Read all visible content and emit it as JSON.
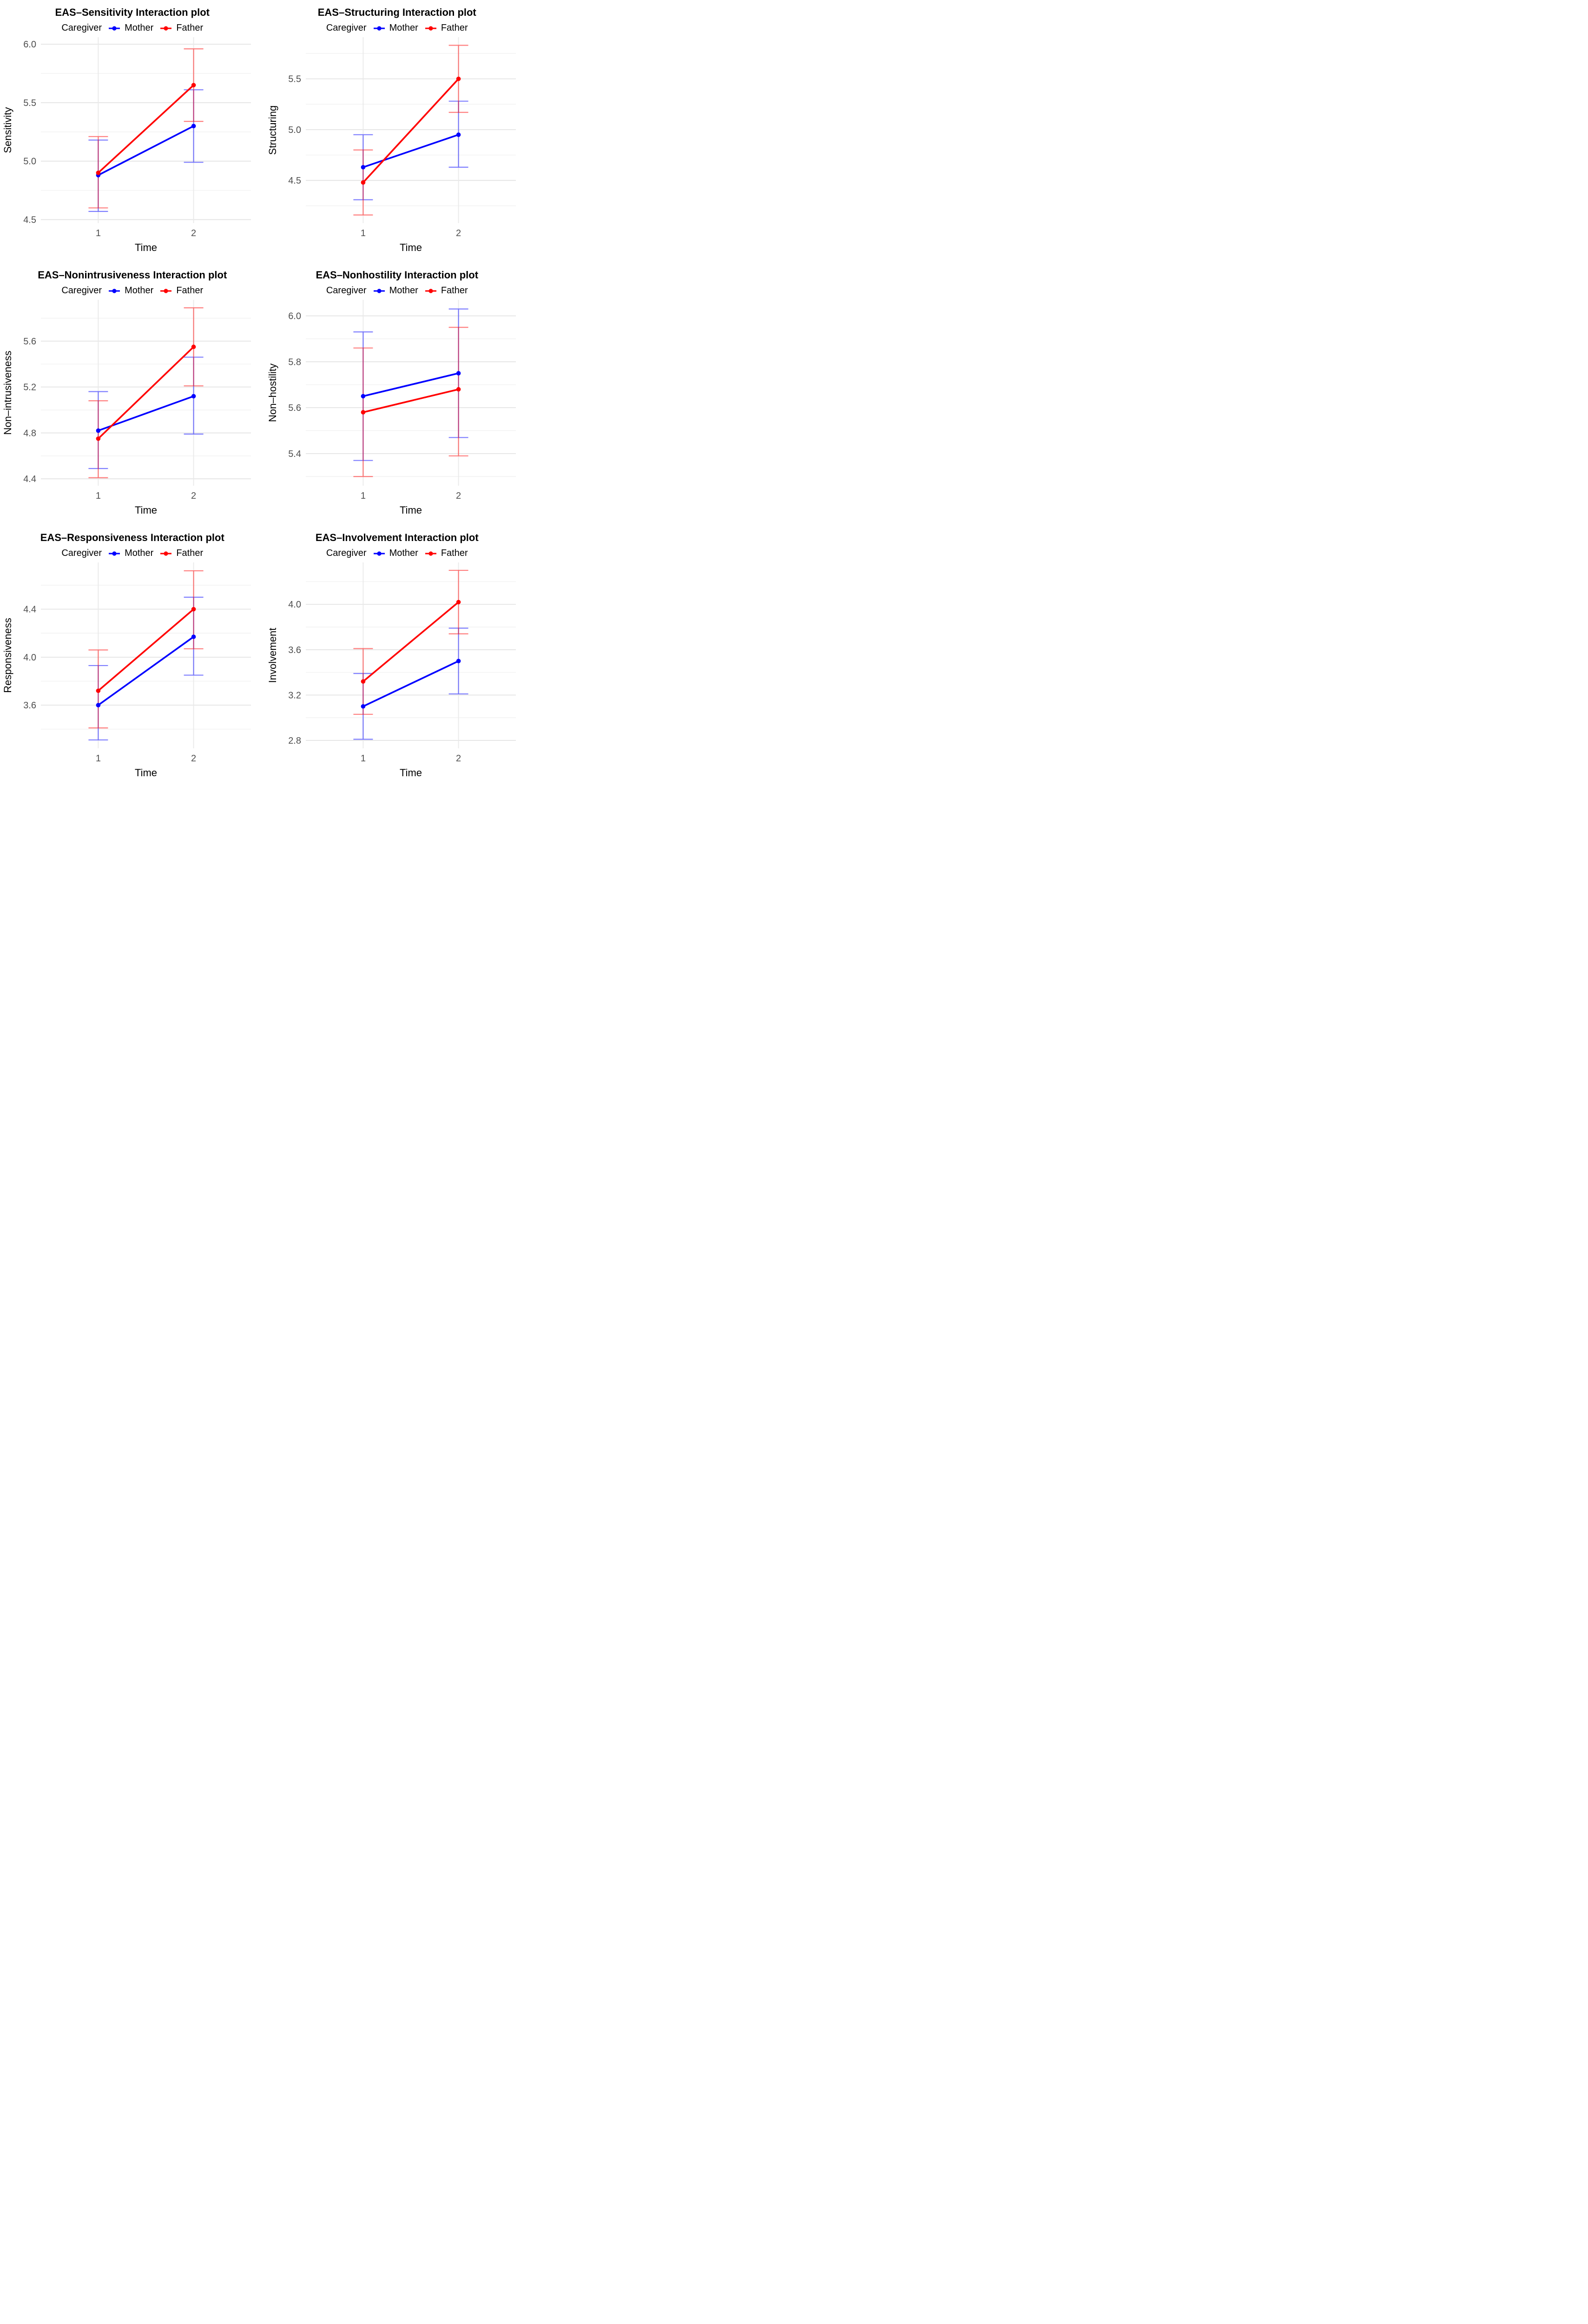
{
  "figure": {
    "background": "#FFFFFF",
    "layout": "2x3 grid of interaction plots",
    "legend_title": "Caregiver",
    "x_axis_label": "Time",
    "colors": {
      "mother": "#0000FF",
      "father": "#FF0000",
      "tick_label": "#4D4D4D",
      "grid_major": "#E4E4E4",
      "grid_minor": "#F1F1F1",
      "grid_vertical": "#E9E9E9"
    }
  },
  "chart_data": [
    {
      "type": "line",
      "title": "EAS–Sensitivity Interaction plot",
      "legend_title": "Caregiver",
      "xlabel": "Time",
      "ylabel": "Sensitivity",
      "x": [
        1,
        2
      ],
      "x_tick_labels": [
        "1",
        "2"
      ],
      "yticks": [
        4.5,
        5.0,
        5.5,
        6.0
      ],
      "ytick_labels": [
        "4.5",
        "5.0",
        "5.5",
        "6.0"
      ],
      "ylim": [
        4.47,
        6.06
      ],
      "grid": true,
      "legend_position": "top",
      "series": [
        {
          "name": "Mother",
          "color": "#0000FF",
          "values": [
            4.88,
            5.3
          ],
          "ci_lower": [
            4.57,
            4.99
          ],
          "ci_upper": [
            5.18,
            5.61
          ]
        },
        {
          "name": "Father",
          "color": "#FF0000",
          "values": [
            4.9,
            5.65
          ],
          "ci_lower": [
            4.6,
            5.34
          ],
          "ci_upper": [
            5.21,
            5.96
          ]
        }
      ]
    },
    {
      "type": "line",
      "title": "EAS–Structuring Interaction plot",
      "legend_title": "Caregiver",
      "xlabel": "Time",
      "ylabel": "Structuring",
      "x": [
        1,
        2
      ],
      "x_tick_labels": [
        "1",
        "2"
      ],
      "yticks": [
        4.5,
        5.0,
        5.5
      ],
      "ytick_labels": [
        "4.5",
        "5.0",
        "5.5"
      ],
      "ylim": [
        4.08,
        5.91
      ],
      "grid": true,
      "legend_position": "top",
      "series": [
        {
          "name": "Mother",
          "color": "#0000FF",
          "values": [
            4.63,
            4.95
          ],
          "ci_lower": [
            4.31,
            4.63
          ],
          "ci_upper": [
            4.95,
            5.28
          ]
        },
        {
          "name": "Father",
          "color": "#FF0000",
          "values": [
            4.48,
            5.5
          ],
          "ci_lower": [
            4.16,
            5.17
          ],
          "ci_upper": [
            4.8,
            5.83
          ]
        }
      ]
    },
    {
      "type": "line",
      "title": "EAS–Nonintrusiveness Interaction plot",
      "legend_title": "Caregiver",
      "xlabel": "Time",
      "ylabel": "Non–intrusiveness",
      "x": [
        1,
        2
      ],
      "x_tick_labels": [
        "1",
        "2"
      ],
      "yticks": [
        4.4,
        4.8,
        5.2,
        5.6
      ],
      "ytick_labels": [
        "4.4",
        "4.8",
        "5.2",
        "5.6"
      ],
      "ylim": [
        4.34,
        5.96
      ],
      "grid": true,
      "legend_position": "top",
      "series": [
        {
          "name": "Mother",
          "color": "#0000FF",
          "values": [
            4.82,
            5.12
          ],
          "ci_lower": [
            4.49,
            4.79
          ],
          "ci_upper": [
            5.16,
            5.46
          ]
        },
        {
          "name": "Father",
          "color": "#FF0000",
          "values": [
            4.75,
            5.55
          ],
          "ci_lower": [
            4.41,
            5.21
          ],
          "ci_upper": [
            5.08,
            5.89
          ]
        }
      ]
    },
    {
      "type": "line",
      "title": "EAS–Nonhostility Interaction plot",
      "legend_title": "Caregiver",
      "xlabel": "Time",
      "ylabel": "Non–hostility",
      "x": [
        1,
        2
      ],
      "x_tick_labels": [
        "1",
        "2"
      ],
      "yticks": [
        5.4,
        5.6,
        5.8,
        6.0
      ],
      "ytick_labels": [
        "5.4",
        "5.6",
        "5.8",
        "6.0"
      ],
      "ylim": [
        5.26,
        6.07
      ],
      "grid": true,
      "legend_position": "top",
      "series": [
        {
          "name": "Mother",
          "color": "#0000FF",
          "values": [
            5.65,
            5.75
          ],
          "ci_lower": [
            5.37,
            5.47
          ],
          "ci_upper": [
            5.93,
            6.03
          ]
        },
        {
          "name": "Father",
          "color": "#FF0000",
          "values": [
            5.58,
            5.68
          ],
          "ci_lower": [
            5.3,
            5.39
          ],
          "ci_upper": [
            5.86,
            5.95
          ]
        }
      ]
    },
    {
      "type": "line",
      "title": "EAS–Responsiveness Interaction plot",
      "legend_title": "Caregiver",
      "xlabel": "Time",
      "ylabel": "Responsiveness",
      "x": [
        1,
        2
      ],
      "x_tick_labels": [
        "1",
        "2"
      ],
      "yticks": [
        3.6,
        4.0,
        4.4
      ],
      "ytick_labels": [
        "3.6",
        "4.0",
        "4.4"
      ],
      "ylim": [
        3.24,
        4.79
      ],
      "grid": true,
      "legend_position": "top",
      "series": [
        {
          "name": "Mother",
          "color": "#0000FF",
          "values": [
            3.6,
            4.17
          ],
          "ci_lower": [
            3.31,
            3.85
          ],
          "ci_upper": [
            3.93,
            4.5
          ]
        },
        {
          "name": "Father",
          "color": "#FF0000",
          "values": [
            3.72,
            4.4
          ],
          "ci_lower": [
            3.41,
            4.07
          ],
          "ci_upper": [
            4.06,
            4.72
          ]
        }
      ]
    },
    {
      "type": "line",
      "title": "EAS–Involvement Interaction plot",
      "legend_title": "Caregiver",
      "xlabel": "Time",
      "ylabel": "Involvement",
      "x": [
        1,
        2
      ],
      "x_tick_labels": [
        "1",
        "2"
      ],
      "yticks": [
        2.8,
        3.2,
        3.6,
        4.0
      ],
      "ytick_labels": [
        "2.8",
        "3.2",
        "3.6",
        "4.0"
      ],
      "ylim": [
        2.73,
        4.37
      ],
      "grid": true,
      "legend_position": "top",
      "series": [
        {
          "name": "Mother",
          "color": "#0000FF",
          "values": [
            3.1,
            3.5
          ],
          "ci_lower": [
            2.81,
            3.21
          ],
          "ci_upper": [
            3.39,
            3.79
          ]
        },
        {
          "name": "Father",
          "color": "#FF0000",
          "values": [
            3.32,
            4.02
          ],
          "ci_lower": [
            3.03,
            3.74
          ],
          "ci_upper": [
            3.61,
            4.3
          ]
        }
      ]
    }
  ]
}
